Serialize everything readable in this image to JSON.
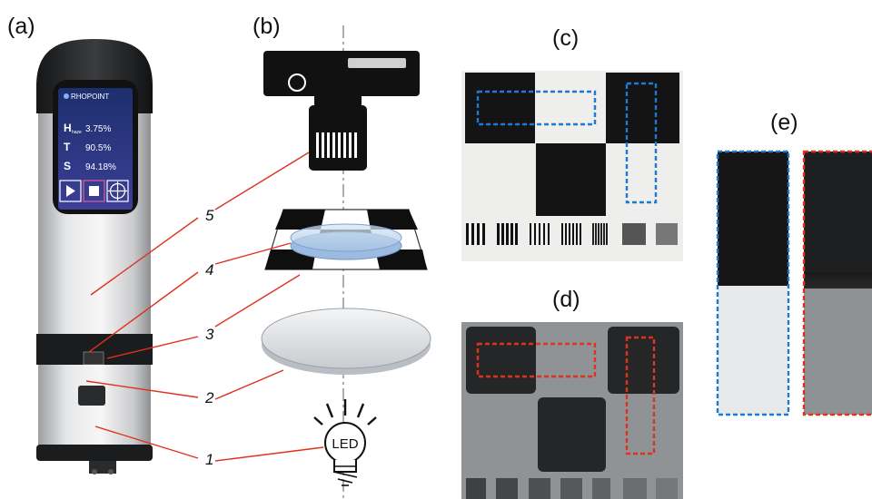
{
  "panels": {
    "a": "(a)",
    "b": "(b)",
    "c": "(c)",
    "d": "(d)",
    "e": "(e)"
  },
  "device": {
    "brand": "RHOPOINT",
    "readings": [
      {
        "symbol": "H",
        "sub": "haze",
        "value": "3.75%"
      },
      {
        "symbol": "T",
        "sub": "",
        "value": "90.5%"
      },
      {
        "symbol": "S",
        "sub": "",
        "value": "94.18%"
      }
    ],
    "buttons": [
      "play-icon",
      "stop-icon",
      "target-icon"
    ]
  },
  "callouts": [
    "5",
    "4",
    "3",
    "2",
    "1"
  ],
  "led_label": "LED",
  "colors": {
    "leader": "#e0301e",
    "box_clear": "#1a7ad8",
    "box_hazy": "#e0301e",
    "checker_dark": "#161616",
    "device_shell": "#d9dadb",
    "device_dark": "#1f2022"
  }
}
